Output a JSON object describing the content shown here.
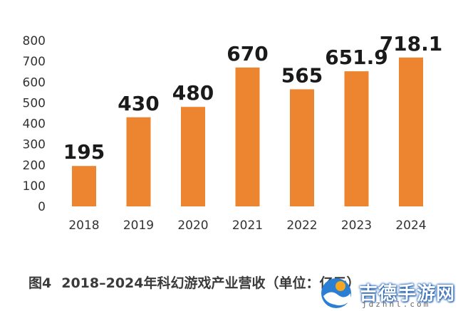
{
  "chart_data": {
    "type": "bar",
    "categories": [
      "2018",
      "2019",
      "2020",
      "2021",
      "2022",
      "2023",
      "2024"
    ],
    "values": [
      195,
      430,
      480,
      670,
      565,
      651.9,
      718.1
    ],
    "value_labels": [
      "195",
      "430",
      "480",
      "670",
      "565",
      "651.9",
      "718.1"
    ],
    "yticks": [
      "0",
      "100",
      "200",
      "300",
      "400",
      "500",
      "600",
      "700",
      "800"
    ],
    "ylim": [
      0,
      800
    ],
    "bar_color": "#ED8530",
    "grid": false,
    "title": "2018–2024年科幻游戏产业营收（单位：亿元）",
    "figure_number": "图4"
  },
  "caption": {
    "figure_number": "图4",
    "text": "2018–2024年科幻游戏产业营收（单位：亿元）"
  },
  "watermark": {
    "brand": "吉德手游网",
    "url": "jdzhnl.com"
  }
}
